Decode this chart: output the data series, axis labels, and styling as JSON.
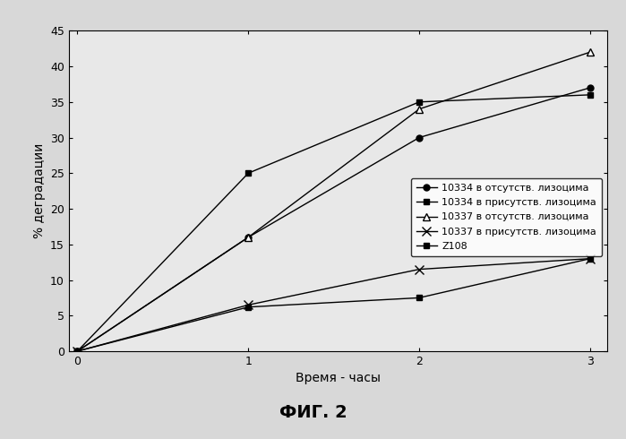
{
  "x": [
    0,
    1,
    2,
    3
  ],
  "series": [
    {
      "label": "10334 в отсутств. лизоцима",
      "y": [
        0,
        16,
        30,
        37
      ],
      "marker": "o",
      "markersize": 5,
      "color": "#000000",
      "linestyle": "-",
      "markerfill": "black"
    },
    {
      "label": "10334 в присутств. лизоцима",
      "y": [
        0,
        25,
        35,
        36
      ],
      "marker": "s",
      "markersize": 5,
      "color": "#000000",
      "linestyle": "-",
      "markerfill": "black"
    },
    {
      "label": "10337 в отсутств. лизоцима",
      "y": [
        0,
        16,
        34,
        42
      ],
      "marker": "^",
      "markersize": 6,
      "color": "#000000",
      "linestyle": "-",
      "markerfill": "white"
    },
    {
      "label": "10337 в присутств. лизоцима",
      "y": [
        0,
        6.5,
        11.5,
        13
      ],
      "marker": "x",
      "markersize": 7,
      "color": "#000000",
      "linestyle": "-",
      "markerfill": "black"
    },
    {
      "label": "Z108",
      "y": [
        0,
        6.2,
        7.5,
        13
      ],
      "marker": "s",
      "markersize": 5,
      "color": "#000000",
      "linestyle": "-",
      "markerfill": "black"
    }
  ],
  "xlabel": "Время - часы",
  "ylabel": "% деградации",
  "ylim": [
    0,
    45
  ],
  "xlim": [
    -0.05,
    3.1
  ],
  "yticks": [
    0,
    5,
    10,
    15,
    20,
    25,
    30,
    35,
    40,
    45
  ],
  "xticks": [
    0,
    1,
    2,
    3
  ],
  "fig_caption": "ФИГ. 2",
  "background_color": "#d8d8d8",
  "plot_bg_color": "#e8e8e8",
  "legend_fontsize": 8,
  "axis_fontsize": 10,
  "caption_fontsize": 14,
  "tick_fontsize": 9
}
